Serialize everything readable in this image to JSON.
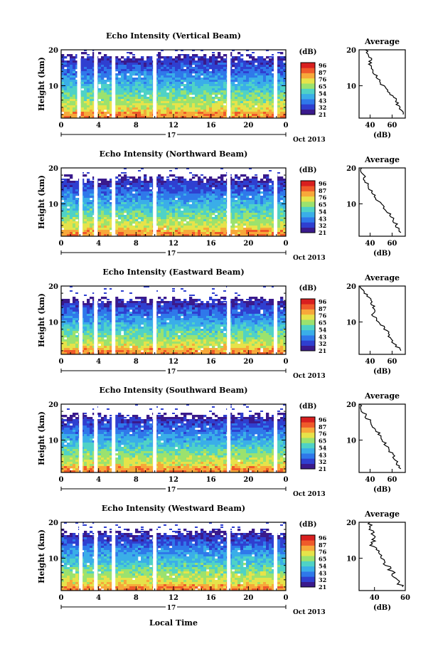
{
  "colors": {
    "colorbar": [
      "#3a1a8c",
      "#2f3fd0",
      "#2f78ea",
      "#3aaee8",
      "#4fd2c6",
      "#9be26e",
      "#e6e34a",
      "#f7a83a",
      "#ef5a2a",
      "#d81f1f"
    ]
  },
  "shared": {
    "y_axis_label": "Height (km)",
    "x_ticks": [
      "0",
      "4",
      "8",
      "12",
      "16",
      "20",
      "0"
    ],
    "date_text": "17",
    "month_text": "Oct 2013",
    "unit_label": "(dB)",
    "x_axis_label": "Local Time",
    "colorbar_labels": [
      "96",
      "87",
      "76",
      "65",
      "54",
      "43",
      "32",
      "21"
    ]
  },
  "chart_data": [
    {
      "type": "heatmap",
      "title": "Echo Intensity (Vertical Beam)",
      "y_ticks": [
        "20",
        "10"
      ],
      "ylim": [
        1,
        20
      ],
      "xlim": [
        0,
        24
      ],
      "zlim": [
        21,
        96
      ],
      "gaps_hours": [
        1.9,
        3.7,
        5.6,
        10.0,
        17.9,
        22.9
      ],
      "top_km": 18.5,
      "avg_title": "Average",
      "avg_x_ticks": [
        "40",
        "60"
      ],
      "avg_xlim": [
        30,
        72
      ],
      "avg_profile": {
        "height_km": [
          20,
          18,
          16,
          14,
          12,
          10,
          8,
          6,
          4,
          2
        ],
        "db": [
          36,
          40,
          40,
          42,
          47,
          52,
          58,
          64,
          66,
          70
        ]
      }
    },
    {
      "type": "heatmap",
      "title": "Echo Intensity (Northward Beam)",
      "y_ticks": [
        "20",
        "10"
      ],
      "ylim": [
        1,
        20
      ],
      "xlim": [
        0,
        24
      ],
      "zlim": [
        21,
        96
      ],
      "gaps_hours": [
        2.1,
        3.7,
        5.6,
        10.0,
        17.9,
        22.9
      ],
      "top_km": 17.5,
      "avg_title": "Average",
      "avg_x_ticks": [
        "40",
        "60"
      ],
      "avg_xlim": [
        30,
        72
      ],
      "avg_profile": {
        "height_km": [
          20,
          18,
          16,
          14,
          12,
          10,
          8,
          6,
          4,
          2
        ],
        "db": [
          32,
          34,
          36,
          40,
          44,
          50,
          56,
          60,
          64,
          68
        ]
      }
    },
    {
      "type": "heatmap",
      "title": "Echo Intensity (Eastward Beam)",
      "y_ticks": [
        "20",
        "10"
      ],
      "ylim": [
        1,
        20
      ],
      "xlim": [
        0,
        24
      ],
      "zlim": [
        21,
        96
      ],
      "gaps_hours": [
        2.1,
        3.7,
        5.6,
        10.0,
        17.9,
        22.9
      ],
      "top_km": 16.5,
      "avg_title": "Average",
      "avg_x_ticks": [
        "40",
        "60"
      ],
      "avg_xlim": [
        30,
        72
      ],
      "avg_profile": {
        "height_km": [
          20,
          18,
          16,
          14,
          12,
          10,
          8,
          6,
          4,
          2
        ],
        "db": [
          31,
          36,
          40,
          44,
          42,
          48,
          54,
          58,
          62,
          68
        ]
      }
    },
    {
      "type": "heatmap",
      "title": "Echo Intensity (Southward Beam)",
      "y_ticks": [
        "20",
        "10"
      ],
      "ylim": [
        1,
        20
      ],
      "xlim": [
        0,
        24
      ],
      "zlim": [
        21,
        96
      ],
      "gaps_hours": [
        2.1,
        3.7,
        5.6,
        10.0,
        17.9,
        22.9
      ],
      "top_km": 17.0,
      "avg_title": "Average",
      "avg_x_ticks": [
        "40",
        "60"
      ],
      "avg_xlim": [
        30,
        72
      ],
      "avg_profile": {
        "height_km": [
          20,
          18,
          16,
          14,
          12,
          10,
          8,
          6,
          4,
          2
        ],
        "db": [
          30,
          33,
          38,
          42,
          48,
          52,
          56,
          60,
          64,
          68
        ]
      }
    },
    {
      "type": "heatmap",
      "title": "Echo Intensity (Westward Beam)",
      "y_ticks": [
        "20",
        "10"
      ],
      "ylim": [
        1,
        20
      ],
      "xlim": [
        0,
        24
      ],
      "zlim": [
        21,
        96
      ],
      "gaps_hours": [
        2.1,
        3.7,
        5.6,
        10.0,
        17.9,
        22.9
      ],
      "top_km": 17.5,
      "avg_title": "Average",
      "avg_x_ticks": [
        "40",
        "60"
      ],
      "avg_xlim": [
        30,
        60
      ],
      "avg_profile": {
        "height_km": [
          20,
          18,
          16,
          14,
          12,
          10,
          8,
          6,
          4,
          2
        ],
        "db": [
          36,
          38,
          40,
          38,
          42,
          44,
          48,
          52,
          54,
          58
        ]
      }
    }
  ]
}
